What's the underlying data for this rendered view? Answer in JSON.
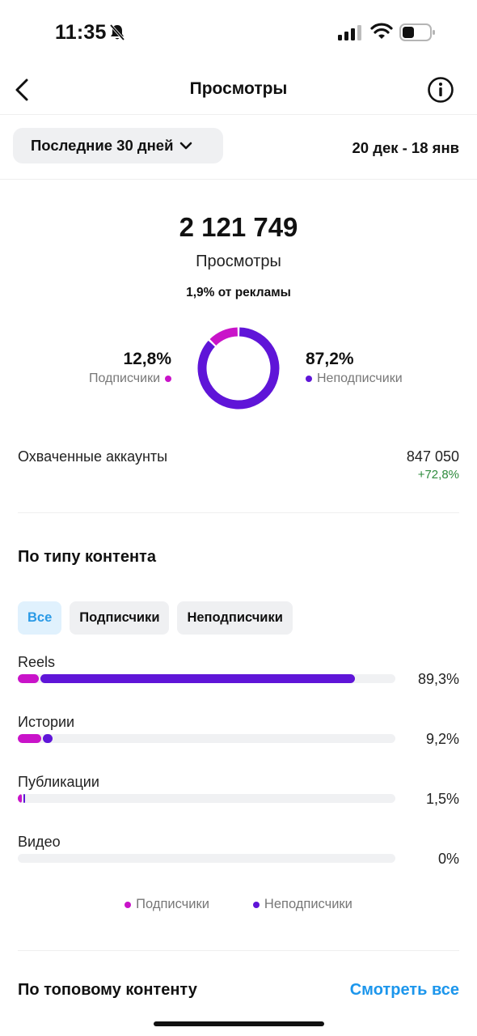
{
  "status_bar": {
    "time": "11:35"
  },
  "header": {
    "title": "Просмотры"
  },
  "period": {
    "label": "Последние 30 дней",
    "date_range": "20 дек - 18 янв"
  },
  "summary": {
    "total_value": "2 121 749",
    "total_label": "Просмотры",
    "ads_share": "1,9% от рекламы",
    "followers": {
      "pct_text": "12,8%",
      "label": "Подписчики",
      "value": 12.8
    },
    "non_followers": {
      "pct_text": "87,2%",
      "label": "Неподписчики",
      "value": 87.2
    }
  },
  "reach": {
    "label": "Охваченные аккаунты",
    "value": "847 050",
    "change": "+72,8%"
  },
  "content_type": {
    "title": "По типу контента",
    "filters": [
      {
        "label": "Все",
        "active": true
      },
      {
        "label": "Подписчики",
        "active": false
      },
      {
        "label": "Неподписчики",
        "active": false
      }
    ],
    "bars": [
      {
        "name": "Reels",
        "pct_text": "89,3%",
        "total": 89.3,
        "followers_share": 5.6
      },
      {
        "name": "Истории",
        "pct_text": "9,2%",
        "total": 9.2,
        "followers_share": 6.2
      },
      {
        "name": "Публикации",
        "pct_text": "1,5%",
        "total": 1.5,
        "followers_share": 1.0
      },
      {
        "name": "Видео",
        "pct_text": "0%",
        "total": 0,
        "followers_share": 0
      }
    ],
    "legend": {
      "followers": "Подписчики",
      "non_followers": "Неподписчики"
    }
  },
  "top_content": {
    "title": "По топовому контенту",
    "see_all": "Смотреть все"
  },
  "colors": {
    "followers": "#c913c9",
    "non_followers": "#5f15d8",
    "link": "#1c96ec",
    "positive": "#2e8b3d"
  }
}
